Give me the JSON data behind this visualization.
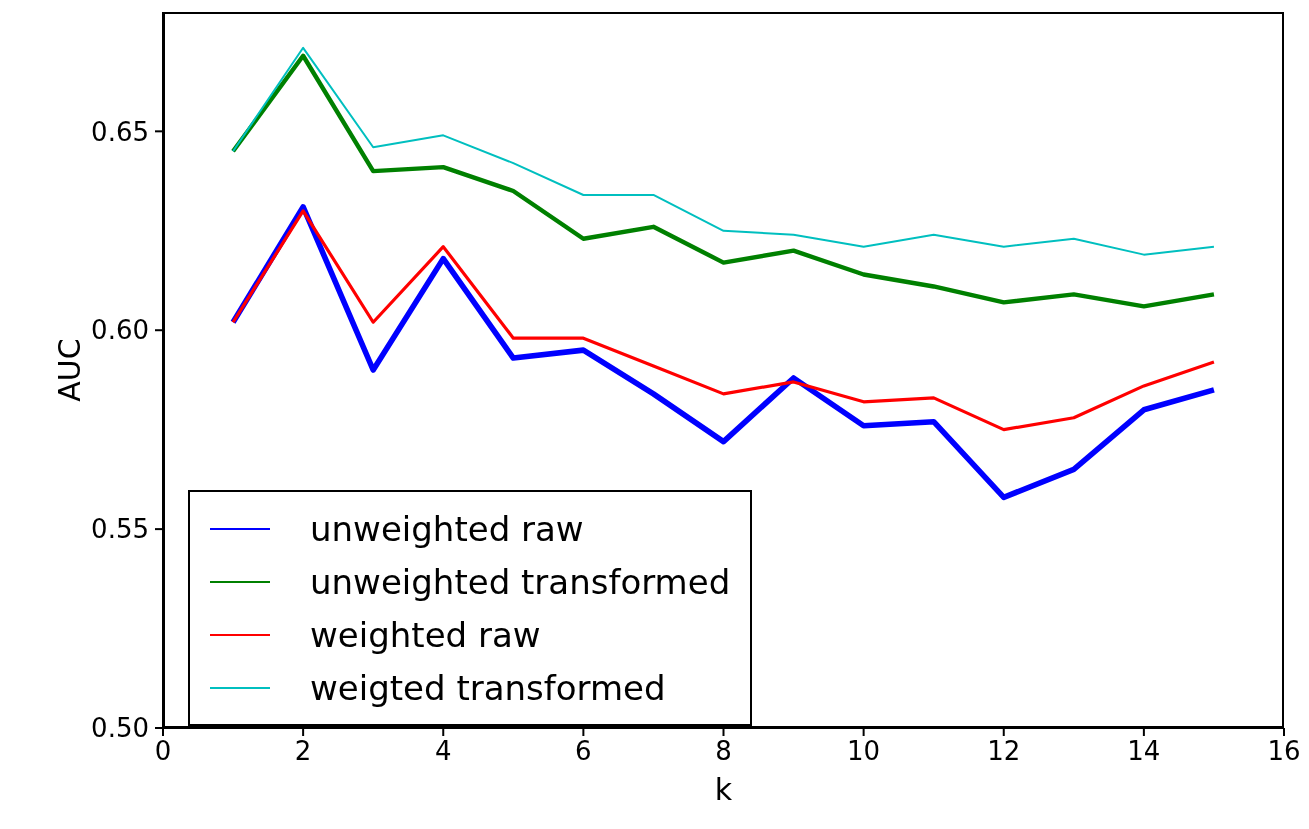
{
  "chart_data": {
    "type": "line",
    "xlabel": "k",
    "ylabel": "AUC",
    "x": [
      1,
      2,
      3,
      4,
      5,
      6,
      7,
      8,
      9,
      10,
      11,
      12,
      13,
      14,
      15
    ],
    "xlim": [
      0,
      16
    ],
    "xticks": [
      0,
      2,
      4,
      6,
      8,
      10,
      12,
      14,
      16
    ],
    "ylim": [
      0.5,
      0.68
    ],
    "yticks": [
      {
        "value": 0.5,
        "label": "0.50"
      },
      0.55,
      {
        "value": 0.6,
        "label": "0.60"
      },
      0.65
    ],
    "legend": "bottom left",
    "marker": "none",
    "line_style": "solid",
    "series": [
      {
        "name": "unweighted raw",
        "color": "#0000ff",
        "values": [
          0.602,
          0.631,
          0.59,
          0.618,
          0.593,
          0.595,
          0.584,
          0.572,
          0.588,
          0.576,
          0.577,
          0.558,
          0.565,
          0.58,
          0.585
        ]
      },
      {
        "name": "unweighted transformed",
        "color": "#008000",
        "values": [
          0.645,
          0.669,
          0.64,
          0.641,
          0.635,
          0.623,
          0.626,
          0.617,
          0.62,
          0.614,
          0.611,
          0.607,
          0.609,
          0.606,
          0.609
        ]
      },
      {
        "name": "weighted raw",
        "color": "#ff0000",
        "values": [
          0.602,
          0.63,
          0.602,
          0.621,
          0.598,
          0.598,
          0.591,
          0.584,
          0.587,
          0.582,
          0.583,
          0.575,
          0.578,
          0.586,
          0.592
        ]
      },
      {
        "name": "weigted transformed",
        "color": "#00bfbf",
        "values": [
          0.645,
          0.671,
          0.646,
          0.649,
          0.642,
          0.634,
          0.634,
          0.625,
          0.624,
          0.621,
          0.624,
          0.621,
          0.623,
          0.619,
          0.621
        ]
      }
    ]
  }
}
